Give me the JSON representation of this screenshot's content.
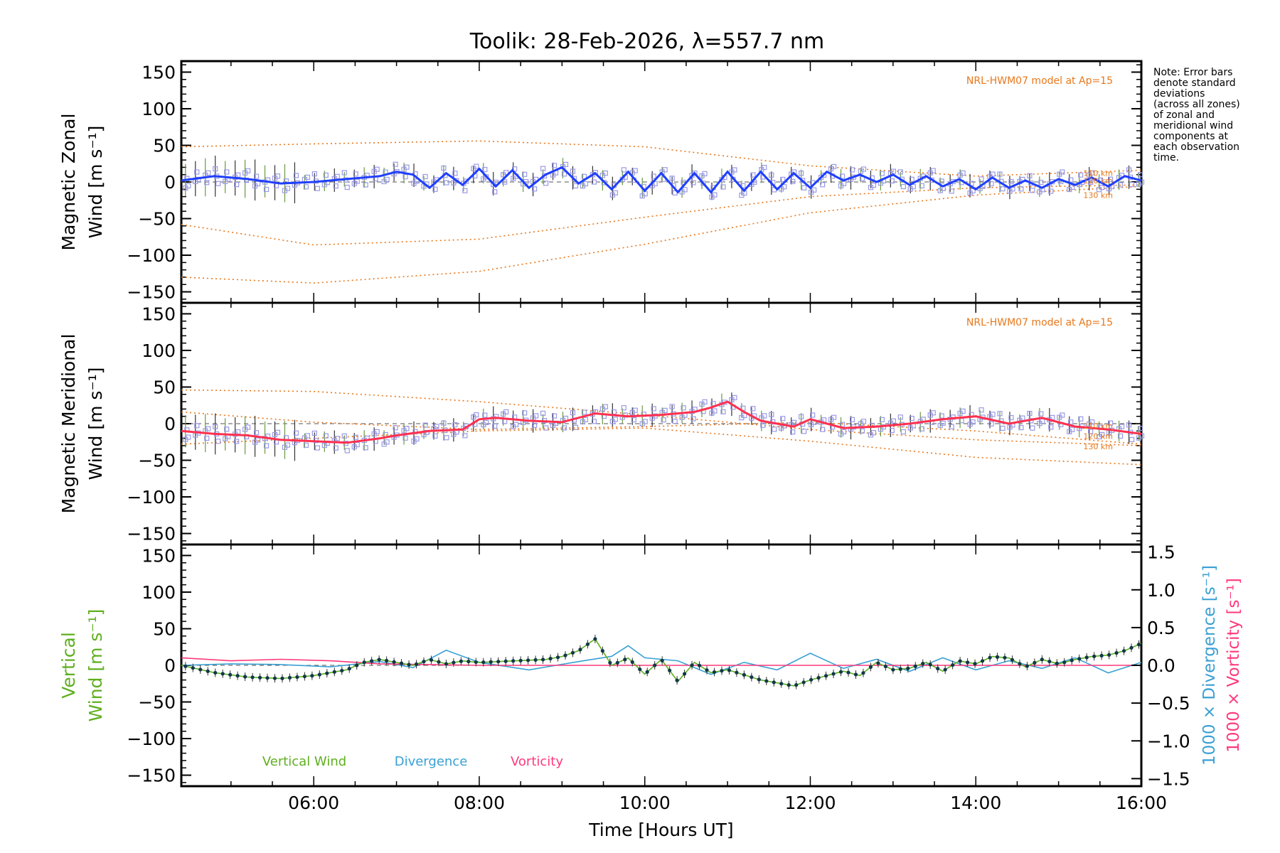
{
  "title": "Toolik: 28-Feb-2026, λ=557.7 nm",
  "note": [
    "Note: Error bars",
    "denote standard",
    "deviations",
    "(across all zones)",
    "of zonal and",
    "meridional wind",
    "components at",
    "each observation",
    "time."
  ],
  "colors": {
    "zonal": "#1f3fff",
    "meridional": "#ff3050",
    "model": "#e8781c",
    "scatter": "#9a9ae6",
    "vertical": "#5faf1f",
    "divergence": "#3aa0d4",
    "vorticity": "#ff3a7a",
    "dots": "#103848"
  },
  "xaxis": {
    "label": "Time [Hours UT]",
    "range": [
      4.4,
      16.0
    ],
    "ticks": [
      6,
      8,
      10,
      12,
      14,
      16
    ],
    "tick_labels": [
      "06:00",
      "08:00",
      "10:00",
      "12:00",
      "14:00",
      "16:00"
    ]
  },
  "chart_data": [
    {
      "type": "line",
      "name": "zonal-panel",
      "ylabel": [
        "Magnetic Zonal",
        "Wind [m s⁻¹]"
      ],
      "ylim": [
        -165,
        165
      ],
      "yticks": [
        150,
        100,
        50,
        0,
        -50,
        -100,
        -150
      ],
      "ytick_labels": [
        "150",
        "100",
        "50",
        "0",
        "−50",
        "−100",
        "−150"
      ],
      "model_label": "NRL-HWM07 model at Ap=15",
      "model_alt_labels": [
        "110 km",
        "120 km",
        "130 km"
      ],
      "model_alt_values": [
        12,
        2,
        -18
      ],
      "series": [
        {
          "name": "Zonal wind",
          "x": [
            4.4,
            4.8,
            5.2,
            5.6,
            6.0,
            6.4,
            6.8,
            7.0,
            7.2,
            7.4,
            7.6,
            7.8,
            8.0,
            8.2,
            8.4,
            8.6,
            8.8,
            9.0,
            9.2,
            9.4,
            9.6,
            9.8,
            10.0,
            10.2,
            10.4,
            10.6,
            10.8,
            11.0,
            11.2,
            11.4,
            11.6,
            11.8,
            12.0,
            12.2,
            12.4,
            12.6,
            12.8,
            13.0,
            13.2,
            13.4,
            13.6,
            13.8,
            14.0,
            14.2,
            14.4,
            14.6,
            14.8,
            15.0,
            15.2,
            15.4,
            15.6,
            15.8,
            16.0
          ],
          "values": [
            2,
            8,
            4,
            -2,
            0,
            4,
            8,
            14,
            10,
            -8,
            12,
            -4,
            18,
            -6,
            16,
            -8,
            10,
            20,
            -2,
            12,
            -10,
            14,
            -12,
            12,
            -14,
            12,
            -14,
            14,
            -12,
            14,
            -10,
            12,
            -8,
            14,
            2,
            10,
            0,
            10,
            -4,
            8,
            -6,
            4,
            -10,
            6,
            -8,
            2,
            -8,
            4,
            -4,
            6,
            -6,
            8,
            2
          ]
        },
        {
          "name": "Model 1",
          "x": [
            4.4,
            6,
            8,
            10,
            12,
            14,
            16
          ],
          "values": [
            48,
            52,
            56,
            48,
            22,
            8,
            16
          ]
        },
        {
          "name": "Model 2",
          "x": [
            4.4,
            6,
            8,
            10,
            12,
            14,
            16
          ],
          "values": [
            -58,
            -86,
            -78,
            -48,
            -20,
            -8,
            -4
          ]
        },
        {
          "name": "Model 3",
          "x": [
            4.4,
            6,
            8,
            10,
            12,
            14,
            16
          ],
          "values": [
            -130,
            -138,
            -122,
            -85,
            -42,
            -18,
            -6
          ]
        }
      ]
    },
    {
      "type": "line",
      "name": "meridional-panel",
      "ylabel": [
        "Magnetic Meridional",
        "Wind [m s⁻¹]"
      ],
      "ylim": [
        -165,
        165
      ],
      "yticks": [
        150,
        100,
        50,
        0,
        -50,
        -100,
        -150
      ],
      "ytick_labels": [
        "150",
        "100",
        "50",
        "0",
        "−50",
        "−100",
        "−150"
      ],
      "model_label": "NRL-HWM07 model at Ap=15",
      "model_alt_labels": [
        "110 km",
        "120 km",
        "130 km"
      ],
      "model_alt_values": [
        -3,
        -17,
        -31
      ],
      "series": [
        {
          "name": "Meridional wind",
          "x": [
            4.4,
            4.8,
            5.2,
            5.6,
            6.0,
            6.4,
            6.8,
            7.0,
            7.4,
            7.8,
            8.0,
            8.2,
            8.6,
            9.0,
            9.4,
            9.8,
            10.2,
            10.6,
            10.8,
            11.0,
            11.2,
            11.4,
            11.6,
            11.8,
            12.0,
            12.4,
            12.8,
            13.2,
            13.6,
            14.0,
            14.4,
            14.8,
            15.2,
            15.6,
            16.0
          ],
          "values": [
            -10,
            -14,
            -16,
            -22,
            -24,
            -26,
            -20,
            -16,
            -10,
            -8,
            6,
            8,
            4,
            2,
            14,
            10,
            12,
            16,
            22,
            30,
            16,
            4,
            0,
            -4,
            6,
            -6,
            -4,
            0,
            6,
            10,
            0,
            8,
            -4,
            -8,
            -14
          ]
        },
        {
          "name": "Model 1",
          "x": [
            4.4,
            6,
            8,
            10,
            12,
            14,
            16
          ],
          "values": [
            46,
            44,
            30,
            12,
            -8,
            -22,
            -30
          ]
        },
        {
          "name": "Model 2",
          "x": [
            4.4,
            6,
            8,
            10,
            12,
            14,
            16
          ],
          "values": [
            16,
            2,
            -8,
            -4,
            2,
            -10,
            -28
          ]
        },
        {
          "name": "Model 3",
          "x": [
            4.4,
            6,
            8,
            10,
            12,
            14,
            16
          ],
          "values": [
            -28,
            -20,
            -10,
            -6,
            -24,
            -46,
            -56
          ]
        }
      ]
    },
    {
      "type": "line",
      "name": "vertical-panel",
      "ylabel": [
        "Vertical",
        "Wind [m s⁻¹]"
      ],
      "ylim": [
        -165,
        165
      ],
      "yticks": [
        150,
        100,
        50,
        0,
        -50,
        -100,
        -150
      ],
      "ytick_labels": [
        "150",
        "100",
        "50",
        "0",
        "−50",
        "−100",
        "−150"
      ],
      "y2label_divergence": "1000 × Divergence [s⁻¹]",
      "y2label_vorticity": "1000 × Vorticity [s⁻¹]",
      "y2lim": [
        -1.6,
        1.6
      ],
      "y2ticks": [
        1.5,
        1.0,
        0.5,
        0.0,
        -0.5,
        -1.0,
        -1.5
      ],
      "y2tick_labels": [
        "1.5",
        "1.0",
        "0.5",
        "0.0",
        "−0.5",
        "−1.0",
        "−1.5"
      ],
      "legend": [
        "Vertical Wind",
        "Divergence",
        "Vorticity"
      ],
      "series": [
        {
          "name": "Vertical Wind",
          "x": [
            4.4,
            4.8,
            5.2,
            5.6,
            6.0,
            6.4,
            6.6,
            6.8,
            7.0,
            7.2,
            7.4,
            7.6,
            7.8,
            8.0,
            8.4,
            8.8,
            9.0,
            9.2,
            9.4,
            9.6,
            9.8,
            10.0,
            10.2,
            10.4,
            10.6,
            10.8,
            11.0,
            11.4,
            11.8,
            12.0,
            12.4,
            12.6,
            12.8,
            13.0,
            13.2,
            13.4,
            13.6,
            13.8,
            14.0,
            14.2,
            14.4,
            14.6,
            14.8,
            15.0,
            15.2,
            15.4,
            15.6,
            15.8,
            16.0
          ],
          "values": [
            0,
            -10,
            -16,
            -18,
            -14,
            -6,
            4,
            8,
            4,
            0,
            8,
            2,
            6,
            4,
            6,
            8,
            12,
            20,
            36,
            0,
            10,
            -12,
            8,
            -22,
            4,
            -10,
            -6,
            -20,
            -28,
            -20,
            -8,
            -14,
            4,
            -6,
            -4,
            4,
            -8,
            6,
            2,
            12,
            10,
            -2,
            8,
            2,
            8,
            12,
            14,
            20,
            30
          ]
        },
        {
          "name": "Divergence",
          "x": [
            4.4,
            5.0,
            5.6,
            6.2,
            6.8,
            7.2,
            7.6,
            8.0,
            8.6,
            9.2,
            9.6,
            9.8,
            10.0,
            10.4,
            10.8,
            11.2,
            11.6,
            12.0,
            12.4,
            12.8,
            13.2,
            13.6,
            14.0,
            14.4,
            14.8,
            15.2,
            15.6,
            16.0
          ],
          "values": [
            0.0,
            0.02,
            0.01,
            -0.02,
            0.05,
            -0.03,
            0.2,
            0.04,
            -0.06,
            0.05,
            0.12,
            0.26,
            0.1,
            0.06,
            -0.12,
            0.04,
            -0.06,
            0.16,
            -0.04,
            0.08,
            -0.08,
            0.1,
            -0.06,
            0.06,
            -0.04,
            0.1,
            -0.1,
            0.04
          ]
        },
        {
          "name": "Vorticity",
          "x": [
            4.4,
            5.0,
            5.6,
            6.2,
            6.8,
            7.4,
            8.0,
            9.0,
            10.0,
            11.0,
            12.0,
            13.0,
            14.0,
            15.0,
            16.0
          ],
          "values": [
            0.1,
            0.06,
            0.08,
            0.06,
            0.02,
            0.01,
            0.0,
            0.0,
            0.0,
            0.0,
            0.0,
            0.0,
            0.0,
            0.0,
            0.0
          ]
        }
      ]
    }
  ]
}
